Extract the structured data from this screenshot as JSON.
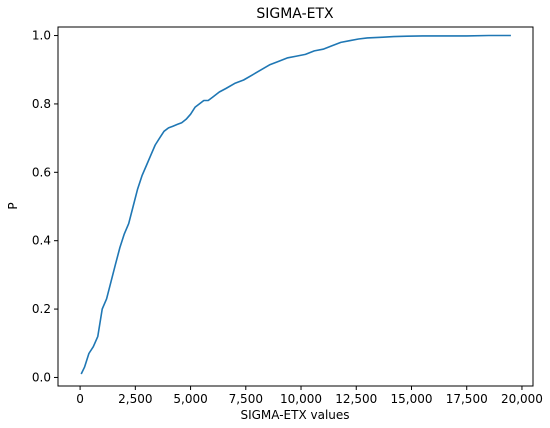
{
  "chart_data": {
    "type": "line",
    "title": "SIGMA-ETX",
    "xlabel": "SIGMA-ETX values",
    "ylabel": "P",
    "xlim": [
      -1000,
      20500
    ],
    "ylim": [
      -0.025,
      1.025
    ],
    "x_ticks": [
      {
        "value": 0,
        "label": "0"
      },
      {
        "value": 2500,
        "label": "2,500"
      },
      {
        "value": 5000,
        "label": "5,000"
      },
      {
        "value": 7500,
        "label": "7,500"
      },
      {
        "value": 10000,
        "label": "10,000"
      },
      {
        "value": 12500,
        "label": "12,500"
      },
      {
        "value": 15000,
        "label": "15,000"
      },
      {
        "value": 17500,
        "label": "17,500"
      },
      {
        "value": 20000,
        "label": "20,000"
      }
    ],
    "y_ticks": [
      {
        "value": 0.0,
        "label": "0.0"
      },
      {
        "value": 0.2,
        "label": "0.2"
      },
      {
        "value": 0.4,
        "label": "0.4"
      },
      {
        "value": 0.6,
        "label": "0.6"
      },
      {
        "value": 0.8,
        "label": "0.8"
      },
      {
        "value": 1.0,
        "label": "1.0"
      }
    ],
    "grid": false,
    "series": [
      {
        "color": "#1f77b4",
        "x": [
          50,
          200,
          400,
          600,
          800,
          1000,
          1200,
          1400,
          1600,
          1800,
          2000,
          2200,
          2400,
          2600,
          2800,
          3000,
          3200,
          3400,
          3600,
          3800,
          4000,
          4200,
          4400,
          4600,
          4800,
          5000,
          5200,
          5400,
          5600,
          5800,
          6000,
          6300,
          6600,
          7000,
          7400,
          7800,
          8200,
          8600,
          9000,
          9400,
          9800,
          10200,
          10600,
          11000,
          11400,
          11800,
          12200,
          12600,
          13000,
          13600,
          14200,
          14800,
          15500,
          16500,
          17500,
          18500,
          19500
        ],
        "y": [
          0.01,
          0.03,
          0.07,
          0.09,
          0.12,
          0.2,
          0.23,
          0.28,
          0.33,
          0.38,
          0.42,
          0.45,
          0.5,
          0.55,
          0.59,
          0.62,
          0.65,
          0.68,
          0.7,
          0.72,
          0.73,
          0.735,
          0.74,
          0.745,
          0.755,
          0.77,
          0.79,
          0.8,
          0.81,
          0.81,
          0.82,
          0.835,
          0.845,
          0.86,
          0.87,
          0.885,
          0.9,
          0.915,
          0.925,
          0.935,
          0.94,
          0.945,
          0.955,
          0.96,
          0.97,
          0.98,
          0.985,
          0.99,
          0.993,
          0.995,
          0.997,
          0.998,
          0.999,
          0.999,
          0.999,
          1.0,
          1.0
        ]
      }
    ]
  }
}
